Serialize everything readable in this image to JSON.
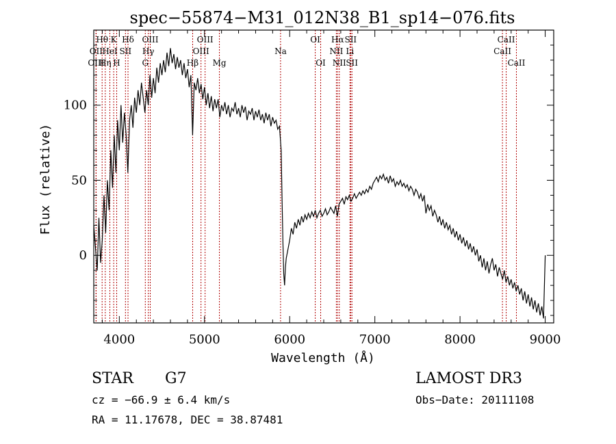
{
  "chart_data": {
    "type": "line",
    "title": "spec−55874−M31_012N38_B1_sp14−076.fits",
    "xlabel": "Wavelength (Å)",
    "ylabel": "Flux (relative)",
    "xlim": [
      3700,
      9100
    ],
    "ylim": [
      -45,
      150
    ],
    "xticks": [
      4000,
      5000,
      6000,
      7000,
      8000,
      9000
    ],
    "yticks": [
      0,
      50,
      100
    ],
    "grid": false,
    "series": [
      {
        "points": [
          [
            3700,
            20
          ],
          [
            3720,
            5
          ],
          [
            3740,
            -10
          ],
          [
            3760,
            25
          ],
          [
            3780,
            -5
          ],
          [
            3800,
            10
          ],
          [
            3820,
            40
          ],
          [
            3840,
            15
          ],
          [
            3860,
            50
          ],
          [
            3880,
            30
          ],
          [
            3900,
            70
          ],
          [
            3920,
            45
          ],
          [
            3940,
            80
          ],
          [
            3960,
            55
          ],
          [
            3980,
            90
          ],
          [
            4000,
            70
          ],
          [
            4020,
            100
          ],
          [
            4040,
            75
          ],
          [
            4060,
            95
          ],
          [
            4080,
            80
          ],
          [
            4100,
            55
          ],
          [
            4120,
            90
          ],
          [
            4140,
            100
          ],
          [
            4160,
            85
          ],
          [
            4180,
            105
          ],
          [
            4200,
            95
          ],
          [
            4220,
            110
          ],
          [
            4240,
            100
          ],
          [
            4260,
            115
          ],
          [
            4280,
            105
          ],
          [
            4300,
            95
          ],
          [
            4320,
            110
          ],
          [
            4340,
            100
          ],
          [
            4360,
            120
          ],
          [
            4380,
            105
          ],
          [
            4400,
            118
          ],
          [
            4420,
            108
          ],
          [
            4440,
            125
          ],
          [
            4460,
            115
          ],
          [
            4480,
            128
          ],
          [
            4500,
            120
          ],
          [
            4520,
            130
          ],
          [
            4540,
            122
          ],
          [
            4560,
            135
          ],
          [
            4580,
            126
          ],
          [
            4600,
            138
          ],
          [
            4620,
            128
          ],
          [
            4640,
            134
          ],
          [
            4660,
            124
          ],
          [
            4680,
            132
          ],
          [
            4700,
            125
          ],
          [
            4720,
            130
          ],
          [
            4740,
            120
          ],
          [
            4760,
            128
          ],
          [
            4780,
            118
          ],
          [
            4800,
            124
          ],
          [
            4820,
            112
          ],
          [
            4840,
            120
          ],
          [
            4860,
            80
          ],
          [
            4880,
            115
          ],
          [
            4900,
            110
          ],
          [
            4920,
            118
          ],
          [
            4940,
            108
          ],
          [
            4960,
            114
          ],
          [
            4980,
            104
          ],
          [
            5000,
            112
          ],
          [
            5020,
            100
          ],
          [
            5040,
            108
          ],
          [
            5060,
            98
          ],
          [
            5080,
            106
          ],
          [
            5100,
            96
          ],
          [
            5120,
            104
          ],
          [
            5140,
            98
          ],
          [
            5160,
            104
          ],
          [
            5180,
            92
          ],
          [
            5200,
            100
          ],
          [
            5220,
            96
          ],
          [
            5240,
            102
          ],
          [
            5260,
            94
          ],
          [
            5280,
            100
          ],
          [
            5300,
            92
          ],
          [
            5320,
            98
          ],
          [
            5340,
            96
          ],
          [
            5360,
            102
          ],
          [
            5380,
            94
          ],
          [
            5400,
            98
          ],
          [
            5420,
            92
          ],
          [
            5440,
            100
          ],
          [
            5460,
            95
          ],
          [
            5480,
            99
          ],
          [
            5500,
            90
          ],
          [
            5520,
            96
          ],
          [
            5540,
            94
          ],
          [
            5560,
            98
          ],
          [
            5580,
            90
          ],
          [
            5600,
            96
          ],
          [
            5620,
            92
          ],
          [
            5640,
            97
          ],
          [
            5660,
            90
          ],
          [
            5680,
            94
          ],
          [
            5700,
            88
          ],
          [
            5720,
            95
          ],
          [
            5740,
            90
          ],
          [
            5760,
            94
          ],
          [
            5780,
            86
          ],
          [
            5800,
            92
          ],
          [
            5820,
            88
          ],
          [
            5840,
            90
          ],
          [
            5860,
            84
          ],
          [
            5880,
            86
          ],
          [
            5900,
            70
          ],
          [
            5910,
            40
          ],
          [
            5920,
            10
          ],
          [
            5930,
            -12
          ],
          [
            5940,
            -20
          ],
          [
            5950,
            -8
          ],
          [
            5960,
            -2
          ],
          [
            5980,
            4
          ],
          [
            6000,
            10
          ],
          [
            6020,
            18
          ],
          [
            6040,
            14
          ],
          [
            6060,
            22
          ],
          [
            6080,
            18
          ],
          [
            6100,
            24
          ],
          [
            6120,
            20
          ],
          [
            6140,
            26
          ],
          [
            6160,
            22
          ],
          [
            6180,
            27
          ],
          [
            6200,
            24
          ],
          [
            6220,
            28
          ],
          [
            6240,
            25
          ],
          [
            6260,
            29
          ],
          [
            6280,
            26
          ],
          [
            6300,
            30
          ],
          [
            6320,
            25
          ],
          [
            6340,
            28
          ],
          [
            6360,
            30
          ],
          [
            6380,
            26
          ],
          [
            6400,
            28
          ],
          [
            6420,
            31
          ],
          [
            6440,
            27
          ],
          [
            6460,
            29
          ],
          [
            6480,
            32
          ],
          [
            6500,
            30
          ],
          [
            6520,
            28
          ],
          [
            6540,
            33
          ],
          [
            6560,
            26
          ],
          [
            6580,
            34
          ],
          [
            6600,
            36
          ],
          [
            6620,
            38
          ],
          [
            6640,
            34
          ],
          [
            6660,
            39
          ],
          [
            6680,
            37
          ],
          [
            6700,
            40
          ],
          [
            6720,
            36
          ],
          [
            6740,
            38
          ],
          [
            6760,
            41
          ],
          [
            6780,
            38
          ],
          [
            6800,
            40
          ],
          [
            6820,
            42
          ],
          [
            6840,
            40
          ],
          [
            6860,
            43
          ],
          [
            6880,
            41
          ],
          [
            6900,
            44
          ],
          [
            6920,
            42
          ],
          [
            6940,
            46
          ],
          [
            6960,
            44
          ],
          [
            6980,
            48
          ],
          [
            7000,
            50
          ],
          [
            7020,
            52
          ],
          [
            7040,
            49
          ],
          [
            7060,
            53
          ],
          [
            7080,
            51
          ],
          [
            7100,
            54
          ],
          [
            7120,
            50
          ],
          [
            7140,
            52
          ],
          [
            7160,
            48
          ],
          [
            7180,
            53
          ],
          [
            7200,
            49
          ],
          [
            7220,
            51
          ],
          [
            7240,
            46
          ],
          [
            7260,
            49
          ],
          [
            7280,
            47
          ],
          [
            7300,
            50
          ],
          [
            7320,
            46
          ],
          [
            7340,
            48
          ],
          [
            7360,
            45
          ],
          [
            7380,
            47
          ],
          [
            7400,
            43
          ],
          [
            7420,
            46
          ],
          [
            7440,
            44
          ],
          [
            7460,
            40
          ],
          [
            7480,
            44
          ],
          [
            7500,
            42
          ],
          [
            7520,
            38
          ],
          [
            7540,
            41
          ],
          [
            7560,
            36
          ],
          [
            7580,
            40
          ],
          [
            7600,
            28
          ],
          [
            7620,
            34
          ],
          [
            7640,
            30
          ],
          [
            7660,
            33
          ],
          [
            7680,
            26
          ],
          [
            7700,
            30
          ],
          [
            7720,
            27
          ],
          [
            7740,
            22
          ],
          [
            7760,
            26
          ],
          [
            7780,
            20
          ],
          [
            7800,
            24
          ],
          [
            7820,
            18
          ],
          [
            7840,
            22
          ],
          [
            7860,
            17
          ],
          [
            7880,
            20
          ],
          [
            7900,
            14
          ],
          [
            7920,
            18
          ],
          [
            7940,
            12
          ],
          [
            7960,
            16
          ],
          [
            7980,
            10
          ],
          [
            8000,
            14
          ],
          [
            8020,
            8
          ],
          [
            8040,
            12
          ],
          [
            8060,
            6
          ],
          [
            8080,
            10
          ],
          [
            8100,
            4
          ],
          [
            8120,
            8
          ],
          [
            8140,
            2
          ],
          [
            8160,
            6
          ],
          [
            8180,
            0
          ],
          [
            8200,
            4
          ],
          [
            8220,
            -4
          ],
          [
            8240,
            0
          ],
          [
            8260,
            -8
          ],
          [
            8280,
            -2
          ],
          [
            8300,
            -10
          ],
          [
            8320,
            -4
          ],
          [
            8340,
            -12
          ],
          [
            8360,
            -6
          ],
          [
            8380,
            -2
          ],
          [
            8400,
            -10
          ],
          [
            8420,
            -6
          ],
          [
            8440,
            -14
          ],
          [
            8460,
            -8
          ],
          [
            8480,
            -12
          ],
          [
            8500,
            -16
          ],
          [
            8520,
            -10
          ],
          [
            8540,
            -18
          ],
          [
            8560,
            -14
          ],
          [
            8580,
            -20
          ],
          [
            8600,
            -16
          ],
          [
            8620,
            -22
          ],
          [
            8640,
            -18
          ],
          [
            8660,
            -24
          ],
          [
            8680,
            -20
          ],
          [
            8700,
            -26
          ],
          [
            8720,
            -22
          ],
          [
            8740,
            -30
          ],
          [
            8760,
            -24
          ],
          [
            8780,
            -32
          ],
          [
            8800,
            -26
          ],
          [
            8820,
            -34
          ],
          [
            8840,
            -28
          ],
          [
            8860,
            -36
          ],
          [
            8880,
            -30
          ],
          [
            8900,
            -38
          ],
          [
            8920,
            -32
          ],
          [
            8940,
            -40
          ],
          [
            8960,
            -34
          ],
          [
            8980,
            -42
          ],
          [
            9000,
            0
          ]
        ]
      }
    ],
    "spectral_lines": [
      {
        "label": "Hθ",
        "x": 3798,
        "row": 1
      },
      {
        "label": "K",
        "x": 3934,
        "row": 1
      },
      {
        "label": "Hδ",
        "x": 4102,
        "row": 1
      },
      {
        "label": "OIII",
        "x": 4363,
        "row": 1
      },
      {
        "label": "OIII",
        "x": 5007,
        "row": 1
      },
      {
        "label": "OI",
        "x": 6300,
        "row": 1
      },
      {
        "label": "Hα",
        "x": 6563,
        "row": 1
      },
      {
        "label": "SII",
        "x": 6716,
        "row": 1
      },
      {
        "label": "CaII",
        "x": 8542,
        "row": 1
      },
      {
        "label": "OII",
        "x": 3727,
        "row": 2
      },
      {
        "label": "HeI",
        "x": 3889,
        "row": 2
      },
      {
        "label": "SII",
        "x": 4072,
        "row": 2
      },
      {
        "label": "Hγ",
        "x": 4340,
        "row": 2
      },
      {
        "label": "OIII",
        "x": 4959,
        "row": 2
      },
      {
        "label": "Na",
        "x": 5893,
        "row": 2
      },
      {
        "label": "NII",
        "x": 6548,
        "row": 2
      },
      {
        "label": "Li",
        "x": 6708,
        "row": 2
      },
      {
        "label": "CaII",
        "x": 8498,
        "row": 2
      },
      {
        "label": "OIII",
        "x": 3727,
        "row": 3
      },
      {
        "label": "Hη",
        "x": 3835,
        "row": 3
      },
      {
        "label": "H",
        "x": 3969,
        "row": 3
      },
      {
        "label": "G",
        "x": 4305,
        "row": 3
      },
      {
        "label": "Hβ",
        "x": 4861,
        "row": 3
      },
      {
        "label": "Mg",
        "x": 5175,
        "row": 3
      },
      {
        "label": "OI",
        "x": 6364,
        "row": 3
      },
      {
        "label": "NII",
        "x": 6583,
        "row": 3
      },
      {
        "label": "SII",
        "x": 6731,
        "row": 3
      },
      {
        "label": "CaII",
        "x": 8662,
        "row": 3
      }
    ],
    "info": {
      "class": "STAR",
      "subclass": "G7",
      "survey": "LAMOST DR3",
      "cz": "cz = −66.9 ± 6.4 km/s",
      "obs_date": "Obs−Date: 20111108",
      "coords": "RA =  11.17678, DEC =  38.87481"
    }
  }
}
